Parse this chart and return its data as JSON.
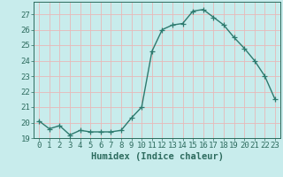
{
  "x": [
    0,
    1,
    2,
    3,
    4,
    5,
    6,
    7,
    8,
    9,
    10,
    11,
    12,
    13,
    14,
    15,
    16,
    17,
    18,
    19,
    20,
    21,
    22,
    23
  ],
  "y": [
    20.1,
    19.6,
    19.8,
    19.2,
    19.5,
    19.4,
    19.4,
    19.4,
    19.5,
    20.3,
    21.0,
    24.6,
    26.0,
    26.3,
    26.4,
    27.2,
    27.3,
    26.8,
    26.3,
    25.5,
    24.8,
    24.0,
    23.0,
    21.5
  ],
  "line_color": "#2d7a6e",
  "marker": "+",
  "markersize": 4,
  "linewidth": 1.0,
  "bg_color": "#c8ecec",
  "grid_color": "#e8b8b8",
  "xlabel": "Humidex (Indice chaleur)",
  "ylim": [
    19,
    27.8
  ],
  "xlim": [
    -0.5,
    23.5
  ],
  "yticks": [
    19,
    20,
    21,
    22,
    23,
    24,
    25,
    26,
    27
  ],
  "xticks": [
    0,
    1,
    2,
    3,
    4,
    5,
    6,
    7,
    8,
    9,
    10,
    11,
    12,
    13,
    14,
    15,
    16,
    17,
    18,
    19,
    20,
    21,
    22,
    23
  ],
  "tick_fontsize": 6.5,
  "xlabel_fontsize": 7.5,
  "tick_color": "#2d6b5e",
  "axis_color": "#2d6b5e",
  "markeredgewidth": 0.9
}
